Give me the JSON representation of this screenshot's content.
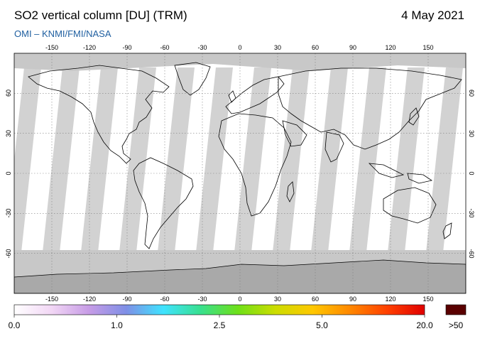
{
  "header": {
    "title": "SO2 vertical column [DU] (TRM)",
    "date": "4 May 2021",
    "credit": "OMI  –  KNMI/FMI/NASA"
  },
  "map": {
    "lon_ticks": [
      "-150",
      "-120",
      "-90",
      "-60",
      "-30",
      "0",
      "30",
      "60",
      "90",
      "120",
      "150"
    ],
    "lat_ticks": [
      "60",
      "30",
      "0",
      "-30",
      "-60"
    ],
    "colors": {
      "no_data": "#c8c8c8",
      "land_shade": "#a9a9a9",
      "ocean": "#ffffff",
      "coast": "#000000",
      "grid": "#808080"
    }
  },
  "colorbar": {
    "labels": [
      "0.0",
      "1.0",
      "2.5",
      "5.0",
      "20.0"
    ],
    "overflow_label": ">50",
    "overflow_color": "#5a0000",
    "gradient": [
      "#ffffff",
      "#f2d7f5",
      "#c79ce6",
      "#7f8fe6",
      "#3fe3ff",
      "#38e08e",
      "#6ee018",
      "#ccdd00",
      "#ffc800",
      "#ff8800",
      "#ff4000",
      "#e00000"
    ]
  }
}
